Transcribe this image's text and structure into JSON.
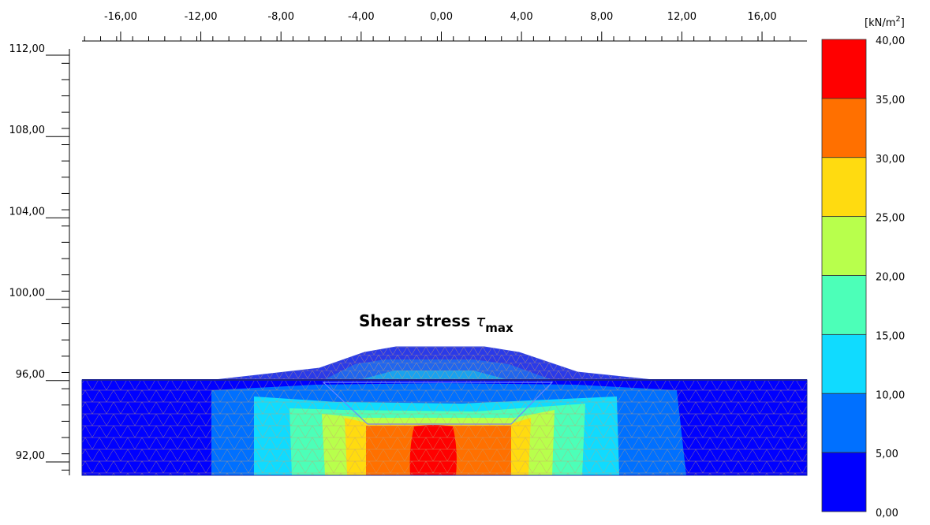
{
  "title": {
    "text": "Shear stress ",
    "symbol": "τ",
    "subscript": "max"
  },
  "x_axis": {
    "ticks": [
      {
        "value": -16,
        "label": "-16,00"
      },
      {
        "value": -12,
        "label": "-12,00"
      },
      {
        "value": -8,
        "label": "-8,00"
      },
      {
        "value": -4,
        "label": "-4,00"
      },
      {
        "value": 0,
        "label": "0,00"
      },
      {
        "value": 4,
        "label": "4,00"
      },
      {
        "value": 8,
        "label": "8,00"
      },
      {
        "value": 12,
        "label": "12,00"
      },
      {
        "value": 16,
        "label": "16,00"
      }
    ],
    "minor_step": 0.8,
    "range": [
      -17.8,
      18.0
    ]
  },
  "y_axis": {
    "ticks": [
      {
        "value": 112,
        "label": "112,00"
      },
      {
        "value": 108,
        "label": "108,00"
      },
      {
        "value": 104,
        "label": "104,00"
      },
      {
        "value": 100,
        "label": "100,00"
      },
      {
        "value": 96,
        "label": "96,00"
      },
      {
        "value": 92,
        "label": "92,00"
      }
    ],
    "minor_step": 0.8,
    "range": [
      91.6,
      112.4
    ]
  },
  "legend": {
    "unit": "kN/m",
    "unit_exp": "2",
    "labels": [
      "40,00",
      "35,00",
      "30,00",
      "25,00",
      "20,00",
      "15,00",
      "10,00",
      "5,00",
      "0,00"
    ],
    "bands": [
      {
        "from": 35,
        "to": 40,
        "color": "#ff0000"
      },
      {
        "from": 30,
        "to": 35,
        "color": "#ff7000"
      },
      {
        "from": 25,
        "to": 30,
        "color": "#ffdb10"
      },
      {
        "from": 20,
        "to": 25,
        "color": "#b8ff4c"
      },
      {
        "from": 15,
        "to": 20,
        "color": "#4cffb8"
      },
      {
        "from": 10,
        "to": 15,
        "color": "#10dbff"
      },
      {
        "from": 5,
        "to": 10,
        "color": "#0070ff"
      },
      {
        "from": 0,
        "to": 5,
        "color": "#0000ff"
      }
    ]
  },
  "colors": {
    "mesh_line": "#c8a070",
    "boundary": "#1a1a80"
  },
  "model": {
    "ground_level": 96.0,
    "bottom_level": 91.7,
    "x_left": -17.8,
    "x_right": 17.8
  }
}
